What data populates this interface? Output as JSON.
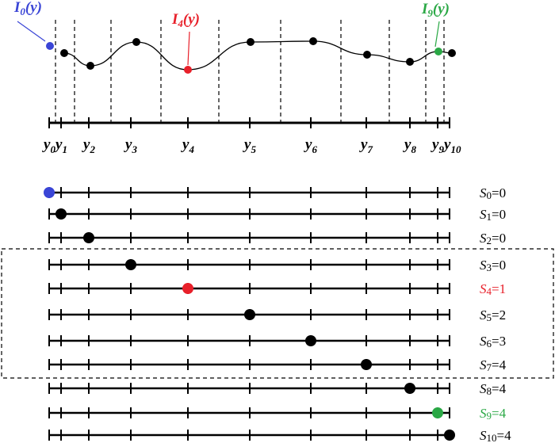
{
  "axis_labels": [
    {
      "letter": "y",
      "index": "0"
    },
    {
      "letter": "y",
      "index": "1"
    },
    {
      "letter": "y",
      "index": "2"
    },
    {
      "letter": "y",
      "index": "3"
    },
    {
      "letter": "y",
      "index": "4"
    },
    {
      "letter": "y",
      "index": "5"
    },
    {
      "letter": "y",
      "index": "6"
    },
    {
      "letter": "y",
      "index": "7"
    },
    {
      "letter": "y",
      "index": "8"
    },
    {
      "letter": "y",
      "index": "9"
    },
    {
      "letter": "y",
      "index": "10"
    }
  ],
  "annotations": [
    {
      "letter": "I",
      "index": "0",
      "arg": "(y)",
      "point": 0,
      "color": "#3a45d6"
    },
    {
      "letter": "I",
      "index": "4",
      "arg": "(y)",
      "point": 4,
      "color": "#e8202a"
    },
    {
      "letter": "I",
      "index": "9",
      "arg": "(y)",
      "point": 9,
      "color": "#2aa845"
    }
  ],
  "rows": [
    {
      "letter": "S",
      "index": "0",
      "value": "=0",
      "dot_color": "#3a45d6"
    },
    {
      "letter": "S",
      "index": "1",
      "value": "=0"
    },
    {
      "letter": "S",
      "index": "2",
      "value": "=0"
    },
    {
      "letter": "S",
      "index": "3",
      "value": "=0"
    },
    {
      "letter": "S",
      "index": "4",
      "value": "=1",
      "dot_color": "#e8202a",
      "label_color": "#e8202a"
    },
    {
      "letter": "S",
      "index": "5",
      "value": "=2"
    },
    {
      "letter": "S",
      "index": "6",
      "value": "=3"
    },
    {
      "letter": "S",
      "index": "7",
      "value": "=4"
    },
    {
      "letter": "S",
      "index": "8",
      "value": "=4"
    },
    {
      "letter": "S",
      "index": "9",
      "value": "=4",
      "dot_color": "#2aa845",
      "label_color": "#2aa845"
    },
    {
      "letter": "S",
      "index": "10",
      "value": "=4"
    }
  ]
}
